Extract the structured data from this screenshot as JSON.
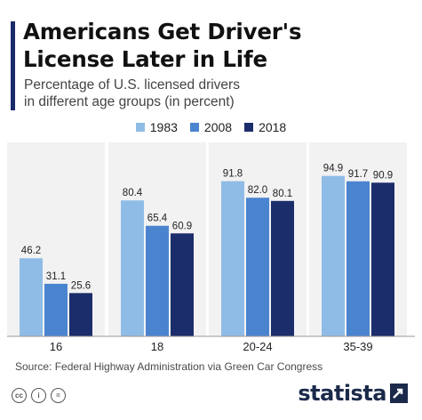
{
  "header": {
    "title_line1": "Americans Get Driver's",
    "title_line2": "License Later in Life",
    "subtitle_line1": "Percentage of U.S. licensed drivers",
    "subtitle_line2": "in different age groups (in percent)"
  },
  "colors": {
    "accent": "#1b2a6b",
    "series": [
      "#8fbce6",
      "#4a84cf",
      "#1c2d6b"
    ]
  },
  "chart_data": {
    "type": "bar",
    "categories": [
      "16",
      "18",
      "20-24",
      "35-39"
    ],
    "series": [
      {
        "name": "1983",
        "values": [
          46.2,
          80.4,
          91.8,
          94.9
        ]
      },
      {
        "name": "2008",
        "values": [
          31.1,
          65.4,
          82.0,
          91.7
        ]
      },
      {
        "name": "2018",
        "values": [
          25.6,
          60.9,
          80.1,
          90.9
        ]
      }
    ],
    "value_labels": [
      [
        "46.2",
        "80.4",
        "91.8",
        "94.9"
      ],
      [
        "31.1",
        "65.4",
        "82.0",
        "91.7"
      ],
      [
        "25.6",
        "60.9",
        "80.1",
        "90.9"
      ]
    ],
    "ylim": [
      0,
      100
    ],
    "legend_position": "top-right",
    "grid": false
  },
  "footer": {
    "source": "Source: Federal Highway Administration via Green Car Congress",
    "cc_icons": [
      "cc-icon",
      "attribution-icon",
      "no-derivatives-icon"
    ],
    "cc_glyphs": [
      "cc",
      "i",
      "="
    ],
    "brand": "statista",
    "brand_icon": "statista-arrow-icon"
  }
}
